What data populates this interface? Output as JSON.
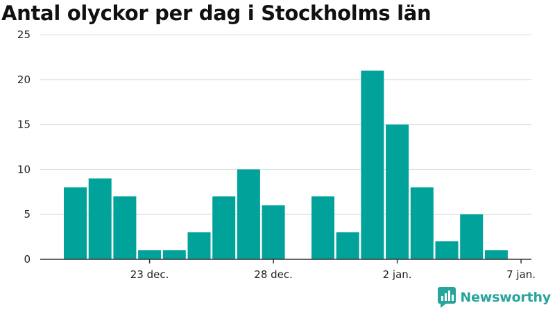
{
  "chart_data": {
    "type": "bar",
    "title": "Antal olyckor per dag i Stockholms län",
    "xlabel": "",
    "ylabel": "",
    "ylim": [
      0,
      25
    ],
    "yticks": [
      0,
      5,
      10,
      15,
      20,
      25
    ],
    "grid": true,
    "x_tick_labels": [
      {
        "date": "2023-12-23",
        "label": "23 dec."
      },
      {
        "date": "2023-12-28",
        "label": "28 dec."
      },
      {
        "date": "2024-01-02",
        "label": "2 jan."
      },
      {
        "date": "2024-01-07",
        "label": "7 jan."
      }
    ],
    "categories": [
      "2023-12-20",
      "2023-12-21",
      "2023-12-22",
      "2023-12-23",
      "2023-12-24",
      "2023-12-25",
      "2023-12-26",
      "2023-12-27",
      "2023-12-28",
      "2023-12-29",
      "2023-12-30",
      "2023-12-31",
      "2024-01-01",
      "2024-01-02",
      "2024-01-03",
      "2024-01-04",
      "2024-01-05",
      "2024-01-06"
    ],
    "values": [
      8,
      9,
      7,
      1,
      1,
      3,
      7,
      10,
      6,
      0,
      7,
      3,
      21,
      15,
      8,
      2,
      5,
      1
    ],
    "bar_color": "#00a29a"
  },
  "logo": {
    "text": "Newsworthy",
    "color": "#27a59b",
    "icon": "newsworthy-logo-icon"
  },
  "colors": {
    "grid": "#dddddd",
    "axis": "#333333",
    "text": "#222222"
  }
}
